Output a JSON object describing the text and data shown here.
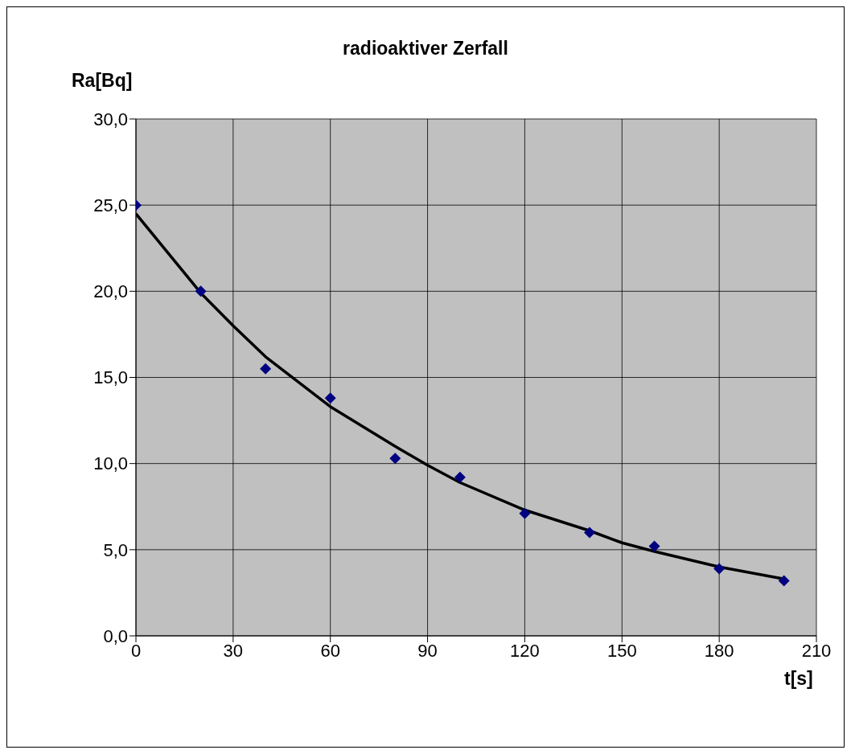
{
  "chart_data": {
    "type": "scatter",
    "title": "radioaktiver Zerfall",
    "xlabel": "t[s]",
    "ylabel": "Ra[Bq]",
    "xlim": [
      0,
      210
    ],
    "xticks": [
      0,
      30,
      60,
      90,
      120,
      150,
      180,
      210
    ],
    "ylim": [
      0,
      30
    ],
    "yticks": [
      {
        "value": 0,
        "label": "0,0"
      },
      {
        "value": 5,
        "label": "5,0"
      },
      {
        "value": 10,
        "label": "10,0"
      },
      {
        "value": 15,
        "label": "15,0"
      },
      {
        "value": 20,
        "label": "20,0"
      },
      {
        "value": 25,
        "label": "25,0"
      },
      {
        "value": 30,
        "label": "30,0"
      }
    ],
    "grid": true,
    "series": [
      {
        "marker": "diamond",
        "color": "#000080",
        "x": [
          0,
          20,
          40,
          60,
          80,
          100,
          120,
          140,
          160,
          180,
          200
        ],
        "values": [
          25.0,
          20.0,
          15.5,
          13.8,
          10.3,
          9.2,
          7.1,
          6.0,
          5.2,
          3.9,
          3.2
        ]
      },
      {
        "type": "line",
        "marker": "none",
        "color": "#000000",
        "line_style": "solid",
        "x": [
          0,
          20,
          30,
          40,
          60,
          80,
          90,
          100,
          120,
          140,
          150,
          160,
          180,
          200
        ],
        "values": [
          24.5,
          19.9,
          18.0,
          16.2,
          13.3,
          11.0,
          9.9,
          8.9,
          7.3,
          6.1,
          5.4,
          4.9,
          4.0,
          3.3
        ]
      }
    ]
  }
}
